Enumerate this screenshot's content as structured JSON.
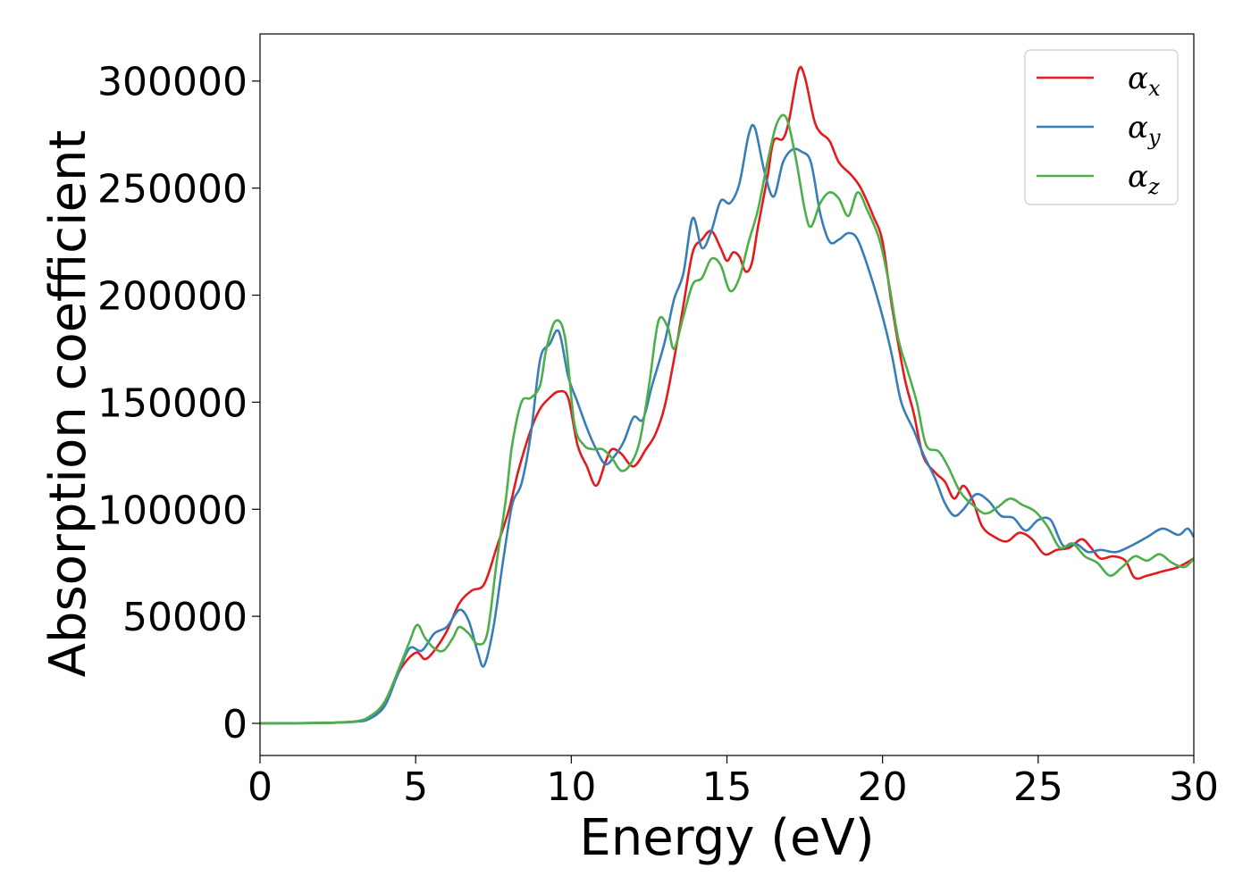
{
  "chart_data": {
    "type": "line",
    "title": "",
    "xlabel": "Energy (eV)",
    "ylabel": "Absorption coefficient",
    "xlim": [
      0,
      30
    ],
    "ylim": [
      -15000,
      322000
    ],
    "xticks": [
      0,
      5,
      10,
      15,
      20,
      25,
      30
    ],
    "yticks": [
      0,
      50000,
      100000,
      150000,
      200000,
      250000,
      300000
    ],
    "grid": false,
    "legend_position": "top-right",
    "series": [
      {
        "name": "α_x",
        "legend_symbol": "α",
        "legend_subscript": "x",
        "color": "#e41a1c",
        "points": [
          [
            0,
            0
          ],
          [
            2,
            200
          ],
          [
            3,
            800
          ],
          [
            3.5,
            2500
          ],
          [
            4,
            9000
          ],
          [
            4.5,
            25000
          ],
          [
            5,
            33000
          ],
          [
            5.3,
            30000
          ],
          [
            5.6,
            34000
          ],
          [
            6,
            43000
          ],
          [
            6.4,
            56000
          ],
          [
            6.8,
            62000
          ],
          [
            7.2,
            65000
          ],
          [
            7.6,
            82000
          ],
          [
            8,
            100000
          ],
          [
            8.3,
            118000
          ],
          [
            8.7,
            137000
          ],
          [
            9,
            147000
          ],
          [
            9.3,
            152000
          ],
          [
            9.6,
            155000
          ],
          [
            9.9,
            152000
          ],
          [
            10.2,
            130000
          ],
          [
            10.5,
            120000
          ],
          [
            10.8,
            111000
          ],
          [
            11.1,
            122000
          ],
          [
            11.3,
            128000
          ],
          [
            11.6,
            126000
          ],
          [
            12,
            120000
          ],
          [
            12.4,
            128000
          ],
          [
            12.7,
            135000
          ],
          [
            13,
            148000
          ],
          [
            13.3,
            170000
          ],
          [
            13.6,
            195000
          ],
          [
            13.9,
            220000
          ],
          [
            14.2,
            226000
          ],
          [
            14.5,
            230000
          ],
          [
            14.8,
            222000
          ],
          [
            15,
            216000
          ],
          [
            15.2,
            220000
          ],
          [
            15.4,
            218000
          ],
          [
            15.6,
            211000
          ],
          [
            15.8,
            215000
          ],
          [
            16,
            232000
          ],
          [
            16.3,
            255000
          ],
          [
            16.5,
            272000
          ],
          [
            16.8,
            273000
          ],
          [
            17,
            282000
          ],
          [
            17.3,
            305000
          ],
          [
            17.5,
            302000
          ],
          [
            17.8,
            282000
          ],
          [
            18,
            276000
          ],
          [
            18.3,
            272000
          ],
          [
            18.6,
            262000
          ],
          [
            19,
            256000
          ],
          [
            19.3,
            250000
          ],
          [
            19.7,
            237000
          ],
          [
            20,
            225000
          ],
          [
            20.3,
            195000
          ],
          [
            20.7,
            162000
          ],
          [
            21,
            145000
          ],
          [
            21.3,
            125000
          ],
          [
            21.7,
            117000
          ],
          [
            22,
            113000
          ],
          [
            22.3,
            105000
          ],
          [
            22.6,
            111000
          ],
          [
            22.9,
            104000
          ],
          [
            23.2,
            92000
          ],
          [
            23.6,
            87000
          ],
          [
            24,
            85000
          ],
          [
            24.4,
            89000
          ],
          [
            24.8,
            86000
          ],
          [
            25.2,
            79000
          ],
          [
            25.6,
            81000
          ],
          [
            26,
            82000
          ],
          [
            26.4,
            86000
          ],
          [
            26.7,
            82000
          ],
          [
            27,
            77000
          ],
          [
            27.4,
            78000
          ],
          [
            27.8,
            76000
          ],
          [
            28.1,
            68000
          ],
          [
            28.5,
            69000
          ],
          [
            29,
            71000
          ],
          [
            29.5,
            73000
          ],
          [
            30,
            77000
          ]
        ]
      },
      {
        "name": "α_y",
        "legend_symbol": "α",
        "legend_subscript": "y",
        "color": "#377eb8",
        "points": [
          [
            0,
            0
          ],
          [
            2,
            200
          ],
          [
            3,
            700
          ],
          [
            3.5,
            2000
          ],
          [
            4,
            8000
          ],
          [
            4.4,
            22000
          ],
          [
            4.8,
            35000
          ],
          [
            5.2,
            34000
          ],
          [
            5.6,
            42000
          ],
          [
            6,
            45000
          ],
          [
            6.4,
            53000
          ],
          [
            6.7,
            48000
          ],
          [
            7,
            33000
          ],
          [
            7.2,
            27000
          ],
          [
            7.5,
            45000
          ],
          [
            7.8,
            75000
          ],
          [
            8.1,
            102000
          ],
          [
            8.4,
            112000
          ],
          [
            8.7,
            135000
          ],
          [
            9,
            170000
          ],
          [
            9.3,
            177000
          ],
          [
            9.6,
            183000
          ],
          [
            9.9,
            162000
          ],
          [
            10.2,
            150000
          ],
          [
            10.5,
            138000
          ],
          [
            10.8,
            128000
          ],
          [
            11.1,
            121000
          ],
          [
            11.4,
            125000
          ],
          [
            11.7,
            132000
          ],
          [
            12,
            143000
          ],
          [
            12.3,
            142000
          ],
          [
            12.6,
            158000
          ],
          [
            13,
            178000
          ],
          [
            13.3,
            198000
          ],
          [
            13.6,
            210000
          ],
          [
            13.9,
            236000
          ],
          [
            14.2,
            222000
          ],
          [
            14.5,
            230000
          ],
          [
            14.8,
            244000
          ],
          [
            15.1,
            243000
          ],
          [
            15.4,
            252000
          ],
          [
            15.7,
            275000
          ],
          [
            15.9,
            278000
          ],
          [
            16.2,
            258000
          ],
          [
            16.5,
            246000
          ],
          [
            16.8,
            262000
          ],
          [
            17.1,
            268000
          ],
          [
            17.4,
            267000
          ],
          [
            17.7,
            262000
          ],
          [
            18,
            238000
          ],
          [
            18.3,
            225000
          ],
          [
            18.6,
            226000
          ],
          [
            18.9,
            229000
          ],
          [
            19.2,
            226000
          ],
          [
            19.6,
            210000
          ],
          [
            20,
            190000
          ],
          [
            20.3,
            172000
          ],
          [
            20.6,
            150000
          ],
          [
            21,
            137000
          ],
          [
            21.3,
            126000
          ],
          [
            21.7,
            114000
          ],
          [
            22,
            103000
          ],
          [
            22.3,
            97000
          ],
          [
            22.6,
            100000
          ],
          [
            23,
            107000
          ],
          [
            23.4,
            104000
          ],
          [
            23.8,
            97000
          ],
          [
            24.2,
            96000
          ],
          [
            24.6,
            90000
          ],
          [
            25,
            95000
          ],
          [
            25.4,
            95000
          ],
          [
            25.8,
            83000
          ],
          [
            26.2,
            84000
          ],
          [
            26.6,
            80000
          ],
          [
            27,
            81000
          ],
          [
            27.5,
            80000
          ],
          [
            28,
            83000
          ],
          [
            28.5,
            87000
          ],
          [
            29,
            91000
          ],
          [
            29.5,
            88000
          ],
          [
            29.8,
            91000
          ],
          [
            30,
            87000
          ]
        ]
      },
      {
        "name": "α_z",
        "legend_symbol": "α",
        "legend_subscript": "z",
        "color": "#4daf4a",
        "points": [
          [
            0,
            0
          ],
          [
            2,
            200
          ],
          [
            3,
            800
          ],
          [
            3.5,
            3000
          ],
          [
            4,
            10000
          ],
          [
            4.5,
            27000
          ],
          [
            4.8,
            38000
          ],
          [
            5.05,
            46000
          ],
          [
            5.3,
            40000
          ],
          [
            5.6,
            35000
          ],
          [
            5.9,
            34000
          ],
          [
            6.2,
            40000
          ],
          [
            6.4,
            45000
          ],
          [
            6.7,
            42000
          ],
          [
            7,
            37000
          ],
          [
            7.3,
            42000
          ],
          [
            7.6,
            75000
          ],
          [
            7.9,
            105000
          ],
          [
            8.1,
            130000
          ],
          [
            8.4,
            150000
          ],
          [
            8.7,
            152000
          ],
          [
            9,
            158000
          ],
          [
            9.2,
            175000
          ],
          [
            9.5,
            188000
          ],
          [
            9.8,
            180000
          ],
          [
            10.1,
            140000
          ],
          [
            10.4,
            130000
          ],
          [
            10.7,
            128000
          ],
          [
            11,
            128000
          ],
          [
            11.3,
            124000
          ],
          [
            11.6,
            118000
          ],
          [
            11.9,
            121000
          ],
          [
            12.2,
            132000
          ],
          [
            12.5,
            158000
          ],
          [
            12.8,
            188000
          ],
          [
            13.1,
            185000
          ],
          [
            13.3,
            175000
          ],
          [
            13.6,
            190000
          ],
          [
            13.9,
            205000
          ],
          [
            14.2,
            208000
          ],
          [
            14.5,
            217000
          ],
          [
            14.8,
            214000
          ],
          [
            15.1,
            202000
          ],
          [
            15.4,
            208000
          ],
          [
            15.7,
            225000
          ],
          [
            16,
            240000
          ],
          [
            16.3,
            262000
          ],
          [
            16.6,
            280000
          ],
          [
            16.9,
            283000
          ],
          [
            17.2,
            265000
          ],
          [
            17.5,
            240000
          ],
          [
            17.7,
            232000
          ],
          [
            18,
            243000
          ],
          [
            18.3,
            248000
          ],
          [
            18.6,
            245000
          ],
          [
            18.9,
            237000
          ],
          [
            19.2,
            248000
          ],
          [
            19.5,
            240000
          ],
          [
            19.9,
            226000
          ],
          [
            20.2,
            206000
          ],
          [
            20.5,
            180000
          ],
          [
            20.8,
            165000
          ],
          [
            21.1,
            150000
          ],
          [
            21.4,
            130000
          ],
          [
            21.8,
            127000
          ],
          [
            22.1,
            120000
          ],
          [
            22.5,
            108000
          ],
          [
            22.9,
            102000
          ],
          [
            23.3,
            98000
          ],
          [
            23.7,
            101000
          ],
          [
            24.1,
            105000
          ],
          [
            24.5,
            102000
          ],
          [
            24.9,
            99000
          ],
          [
            25.3,
            92000
          ],
          [
            25.7,
            82000
          ],
          [
            26.1,
            84000
          ],
          [
            26.5,
            78000
          ],
          [
            26.9,
            75000
          ],
          [
            27.3,
            69000
          ],
          [
            27.7,
            73000
          ],
          [
            28.1,
            78000
          ],
          [
            28.5,
            76000
          ],
          [
            28.9,
            79000
          ],
          [
            29.3,
            75000
          ],
          [
            29.7,
            73000
          ],
          [
            30,
            77000
          ]
        ]
      }
    ]
  }
}
